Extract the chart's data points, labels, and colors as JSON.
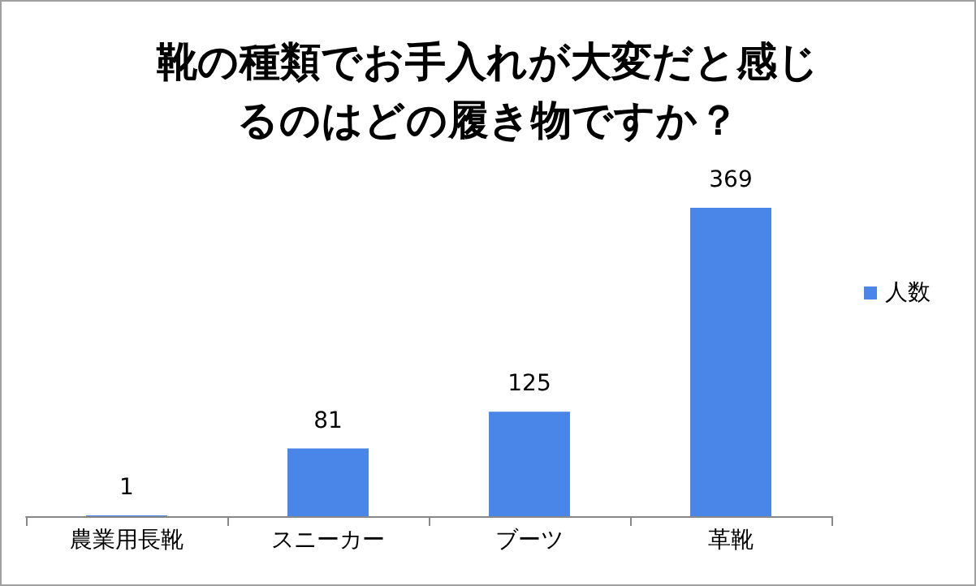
{
  "chart_data": {
    "type": "bar",
    "title": "靴の種類でお手入れが大変だと感じるのはどの履き物ですか？",
    "categories": [
      "農業用長靴",
      "スニーカー",
      "ブーツ",
      "革靴"
    ],
    "series": [
      {
        "name": "人数",
        "color": "#4a86e8",
        "values": [
          1,
          81,
          125,
          369
        ]
      }
    ],
    "data_labels": true,
    "legend": "right"
  }
}
